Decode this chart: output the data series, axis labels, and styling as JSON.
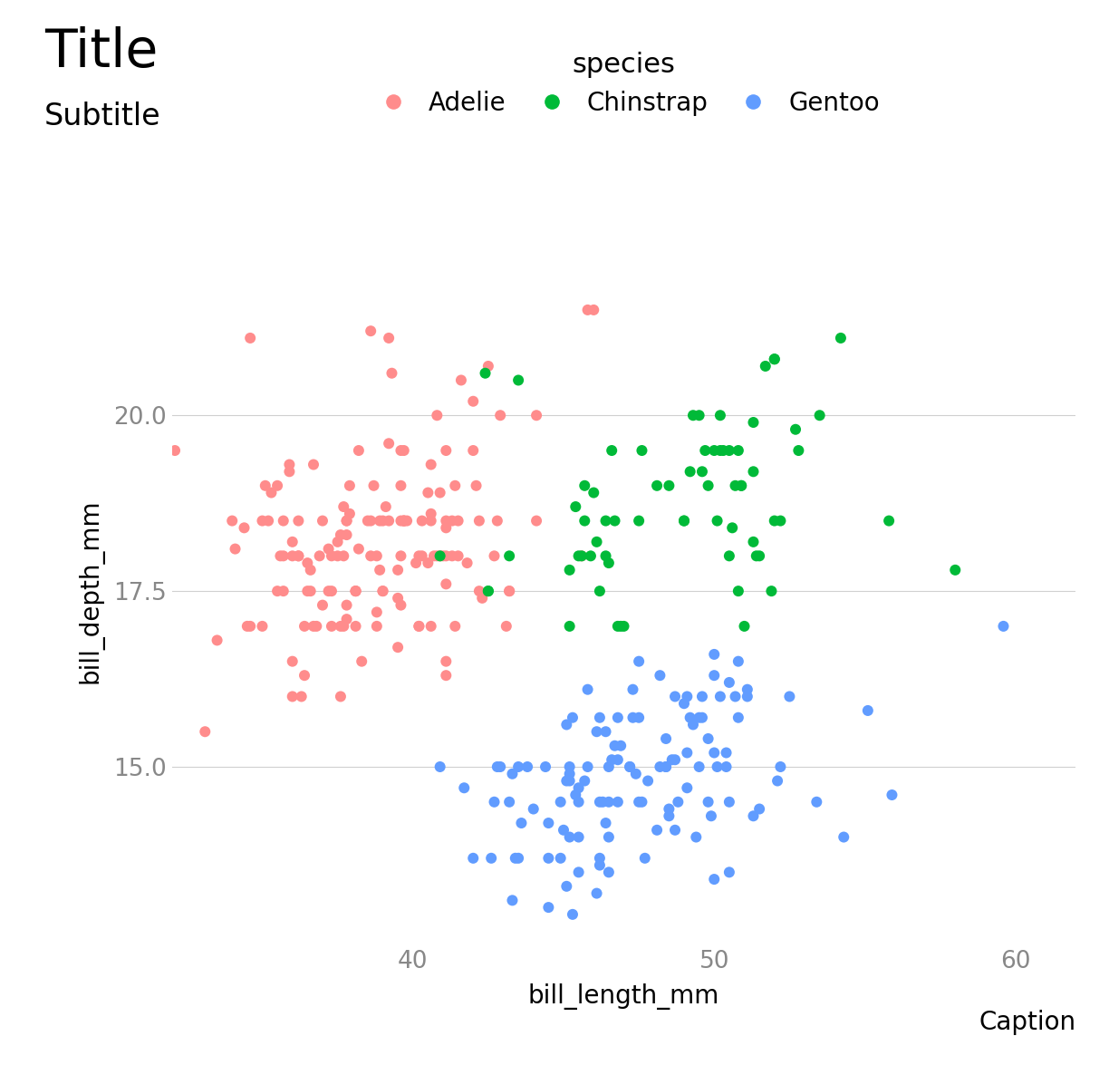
{
  "title": "Title",
  "subtitle": "Subtitle",
  "caption": "Caption",
  "xlabel": "bill_length_mm",
  "ylabel": "bill_depth_mm",
  "legend_title": "species",
  "species": [
    "Adelie",
    "Chinstrap",
    "Gentoo"
  ],
  "colors": {
    "Adelie": "#FF8C8C",
    "Chinstrap": "#00BA38",
    "Gentoo": "#619CFF"
  },
  "background_color": "#FFFFFF",
  "grid_color": "#D0D0D0",
  "title_fontsize": 42,
  "subtitle_fontsize": 24,
  "caption_fontsize": 20,
  "axis_label_fontsize": 20,
  "tick_fontsize": 19,
  "legend_title_fontsize": 22,
  "legend_fontsize": 20,
  "marker_size": 75,
  "xlim": [
    32,
    62
  ],
  "ylim": [
    12.5,
    22.5
  ],
  "xticks": [
    40,
    50,
    60
  ],
  "yticks": [
    15.0,
    17.5,
    20.0
  ],
  "adelie_bill_length": [
    39.1,
    39.5,
    40.3,
    36.7,
    39.3,
    38.9,
    39.2,
    34.1,
    42.0,
    37.8,
    37.8,
    41.1,
    38.6,
    34.6,
    36.6,
    38.7,
    42.5,
    34.4,
    46.0,
    37.8,
    37.7,
    35.9,
    38.2,
    38.8,
    35.3,
    40.6,
    40.5,
    37.9,
    40.5,
    39.5,
    37.2,
    39.5,
    40.9,
    36.4,
    39.2,
    38.8,
    42.2,
    37.6,
    39.8,
    36.5,
    40.8,
    36.0,
    44.1,
    37.0,
    39.6,
    41.1,
    37.5,
    36.0,
    42.3,
    39.6,
    40.1,
    35.0,
    42.0,
    34.5,
    41.4,
    39.0,
    40.6,
    36.5,
    37.6,
    35.7,
    41.3,
    37.6,
    41.1,
    36.4,
    41.6,
    35.5,
    41.1,
    35.9,
    41.8,
    33.5,
    39.7,
    39.6,
    45.8,
    35.5,
    42.8,
    40.9,
    37.2,
    36.2,
    42.1,
    34.6,
    42.9,
    36.7,
    35.1,
    37.3,
    41.3,
    36.3,
    36.9,
    38.3,
    38.9,
    35.7,
    41.1,
    34.0,
    39.6,
    36.2,
    40.8,
    38.1,
    40.3,
    33.1,
    43.2,
    35.0,
    41.0,
    37.7,
    37.8,
    37.9,
    39.7,
    38.6,
    38.2,
    38.1,
    43.2,
    38.1,
    45.6,
    39.7,
    42.2,
    39.6,
    42.7,
    38.6,
    37.3,
    35.7,
    41.1,
    36.2,
    37.7,
    40.2,
    41.4,
    35.2,
    40.6,
    38.8,
    41.5,
    39.0,
    44.1,
    38.5,
    43.1,
    36.8,
    37.5,
    38.1,
    41.1,
    35.6,
    40.2,
    37.0,
    39.7,
    40.2,
    40.6,
    32.1,
    40.7,
    37.3,
    39.0,
    39.2,
    36.6,
    36.0,
    37.8,
    36.0,
    41.5
  ],
  "adelie_bill_depth": [
    18.7,
    17.4,
    18.0,
    19.3,
    20.6,
    17.8,
    19.6,
    18.1,
    20.2,
    17.1,
    17.3,
    17.6,
    21.2,
    21.1,
    17.8,
    19.0,
    20.7,
    18.4,
    21.5,
    18.3,
    18.7,
    19.2,
    18.1,
    17.2,
    18.9,
    18.6,
    17.9,
    18.6,
    18.9,
    16.7,
    18.1,
    17.8,
    18.9,
    17.0,
    21.1,
    17.0,
    18.5,
    16.0,
    18.5,
    17.9,
    20.0,
    16.0,
    20.0,
    17.3,
    17.3,
    18.4,
    18.2,
    18.2,
    17.4,
    18.5,
    17.9,
    17.0,
    19.5,
    17.0,
    19.0,
    17.5,
    19.3,
    17.5,
    18.3,
    17.5,
    18.5,
    17.0,
    16.3,
    16.3,
    20.5,
    19.0,
    18.0,
    19.3,
    17.9,
    16.8,
    19.5,
    19.0,
    21.5,
    17.5,
    18.5,
    18.0,
    17.5,
    18.0,
    19.0,
    17.0,
    20.0,
    17.0,
    19.0,
    18.0,
    18.0,
    16.0,
    18.0,
    16.5,
    18.5,
    18.0,
    19.5,
    18.5,
    19.5,
    18.5,
    18.0,
    17.5,
    18.5,
    15.5,
    17.5,
    18.5,
    18.0,
    18.0,
    18.5,
    19.0,
    18.5,
    18.0,
    19.5,
    17.5,
    17.5,
    17.5,
    18.0,
    18.5,
    17.5,
    18.0,
    18.0,
    18.5,
    17.5,
    18.5,
    18.5,
    18.0,
    17.0,
    18.0,
    17.0,
    18.5,
    18.5,
    18.0,
    18.0,
    18.5,
    18.5,
    18.5,
    17.0,
    17.0,
    18.0,
    17.0,
    16.5,
    18.0,
    17.0,
    18.5,
    18.5,
    17.0,
    17.0,
    19.5,
    18.0,
    17.0,
    17.5,
    18.5,
    17.5,
    18.0,
    18.5,
    16.5,
    18.5
  ],
  "chinstrap_bill_length": [
    46.5,
    50.0,
    51.3,
    45.4,
    52.7,
    45.2,
    46.1,
    51.3,
    46.0,
    51.3,
    46.6,
    51.7,
    47.0,
    52.0,
    45.9,
    50.5,
    50.3,
    58.0,
    46.4,
    49.2,
    42.4,
    48.5,
    43.2,
    50.6,
    46.7,
    52.0,
    50.5,
    49.5,
    46.4,
    52.8,
    40.9,
    54.2,
    42.5,
    51.0,
    49.7,
    47.5,
    47.6,
    52.0,
    46.9,
    53.5,
    49.0,
    46.2,
    50.9,
    45.5,
    50.9,
    50.8,
    50.1,
    49.0,
    51.5,
    49.8,
    48.1,
    51.4,
    45.7,
    50.7,
    42.5,
    52.2,
    45.2,
    49.3,
    50.2,
    45.6,
    51.9,
    46.8,
    45.7,
    55.8,
    43.5,
    49.6,
    50.8,
    50.2
  ],
  "chinstrap_bill_depth": [
    17.9,
    19.5,
    19.2,
    18.7,
    19.8,
    17.8,
    18.2,
    18.2,
    18.9,
    19.9,
    19.5,
    20.7,
    17.0,
    20.8,
    18.0,
    19.5,
    19.5,
    17.8,
    18.5,
    19.2,
    20.6,
    19.0,
    18.0,
    18.4,
    18.5,
    20.8,
    18.0,
    20.0,
    18.0,
    19.5,
    18.0,
    21.1,
    17.5,
    17.0,
    19.5,
    18.5,
    19.5,
    18.5,
    17.0,
    20.0,
    18.5,
    17.5,
    19.0,
    18.0,
    19.0,
    19.5,
    18.5,
    18.5,
    18.0,
    19.0,
    19.0,
    18.0,
    18.5,
    19.0,
    17.5,
    18.5,
    17.0,
    20.0,
    19.5,
    18.0,
    17.5,
    17.0,
    19.0,
    18.5,
    20.5,
    19.2,
    17.5,
    20.0
  ],
  "gentoo_bill_length": [
    46.1,
    50.0,
    48.7,
    50.0,
    47.6,
    46.5,
    45.4,
    46.7,
    43.3,
    46.8,
    40.9,
    49.0,
    45.5,
    48.4,
    45.8,
    49.3,
    42.0,
    49.2,
    46.2,
    48.7,
    50.2,
    45.1,
    46.5,
    46.3,
    42.9,
    46.1,
    44.5,
    47.8,
    48.2,
    50.0,
    47.3,
    42.8,
    45.1,
    59.6,
    49.1,
    48.4,
    42.6,
    44.4,
    44.0,
    48.7,
    42.7,
    49.6,
    45.3,
    49.6,
    50.5,
    43.6,
    45.5,
    50.5,
    44.9,
    45.2,
    46.6,
    48.5,
    45.1,
    50.1,
    46.5,
    45.0,
    43.8,
    45.5,
    43.2,
    50.4,
    45.3,
    46.2,
    45.7,
    54.3,
    45.8,
    49.8,
    46.2,
    49.5,
    43.5,
    50.7,
    47.7,
    46.4,
    48.2,
    46.5,
    46.4,
    48.6,
    47.5,
    51.1,
    45.2,
    45.2,
    49.1,
    52.5,
    47.4,
    50.0,
    44.9,
    50.8,
    43.4,
    51.3,
    47.5,
    52.1,
    47.5,
    52.2,
    45.5,
    49.5,
    44.5,
    50.8,
    49.4,
    46.9,
    48.4,
    51.1,
    48.5,
    55.9,
    47.2,
    49.1,
    47.3,
    46.8,
    41.7,
    53.4,
    43.3,
    48.1,
    50.5,
    49.8,
    43.5,
    51.5,
    46.2,
    55.1,
    44.5,
    48.8,
    47.2,
    46.8,
    50.4,
    45.2,
    49.9
  ],
  "gentoo_bill_depth": [
    13.2,
    16.3,
    14.1,
    15.2,
    14.5,
    13.5,
    14.6,
    15.3,
    13.1,
    15.7,
    15.0,
    15.9,
    13.5,
    15.0,
    16.1,
    15.6,
    13.7,
    15.7,
    13.7,
    16.0,
    16.0,
    15.6,
    15.0,
    14.5,
    15.0,
    15.5,
    13.0,
    14.8,
    16.3,
    13.4,
    15.7,
    15.0,
    14.8,
    17.0,
    16.0,
    15.4,
    13.7,
    15.0,
    14.4,
    15.1,
    14.5,
    16.0,
    12.9,
    15.7,
    13.5,
    14.2,
    14.5,
    14.5,
    14.5,
    14.0,
    15.1,
    14.3,
    13.3,
    15.0,
    14.5,
    14.1,
    15.0,
    14.0,
    14.5,
    15.0,
    15.7,
    14.5,
    14.8,
    14.0,
    15.0,
    15.4,
    13.6,
    15.7,
    13.7,
    16.0,
    13.7,
    15.5,
    15.0,
    14.0,
    14.2,
    15.1,
    14.5,
    16.1,
    15.0,
    14.8,
    15.2,
    16.0,
    14.9,
    16.6,
    13.7,
    15.7,
    13.7,
    14.3,
    15.7,
    14.8,
    16.5,
    15.0,
    14.7,
    15.0,
    13.7,
    16.5,
    14.0,
    15.3,
    15.0,
    16.0,
    14.4,
    14.6,
    15.0,
    14.7,
    16.1,
    14.5,
    14.7,
    14.5,
    14.9,
    14.1,
    16.2,
    14.5,
    15.0,
    14.4,
    15.7,
    15.8,
    14.2,
    14.5,
    15.0,
    15.1,
    15.2,
    14.9,
    14.3
  ]
}
